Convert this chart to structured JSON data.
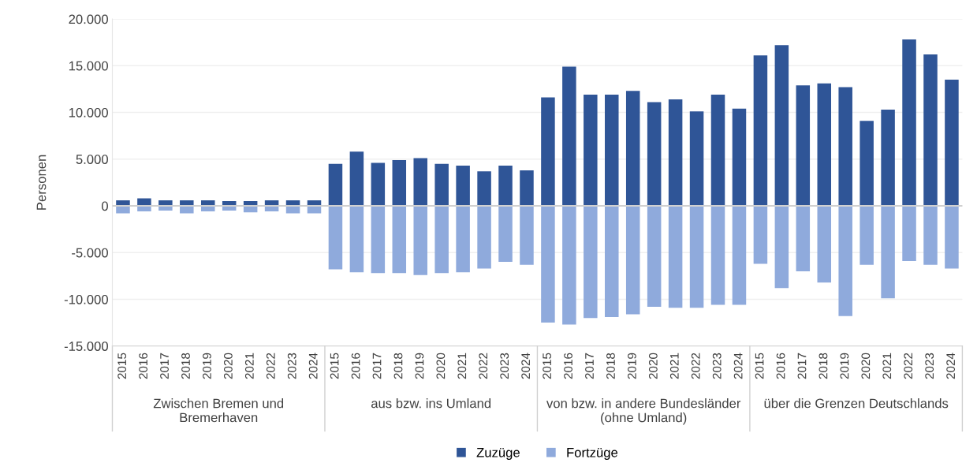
{
  "chart_data": {
    "type": "bar",
    "ylabel": "Personen",
    "categories": [
      "2015",
      "2016",
      "2017",
      "2018",
      "2019",
      "2020",
      "2021",
      "2022",
      "2023",
      "2024",
      "2015",
      "2016",
      "2017",
      "2018",
      "2019",
      "2020",
      "2021",
      "2022",
      "2023",
      "2024",
      "2015",
      "2016",
      "2017",
      "2018",
      "2019",
      "2020",
      "2021",
      "2022",
      "2023",
      "2024",
      "2015",
      "2016",
      "2017",
      "2018",
      "2019",
      "2020",
      "2021",
      "2022",
      "2023",
      "2024"
    ],
    "series": [
      {
        "name": "Zuzüge",
        "color": "#2f5597",
        "values": [
          600,
          800,
          600,
          600,
          600,
          500,
          500,
          600,
          600,
          600,
          4500,
          5800,
          4600,
          4900,
          5100,
          4500,
          4300,
          3700,
          4300,
          3800,
          11600,
          14900,
          11900,
          11900,
          12300,
          11100,
          11400,
          10100,
          11900,
          10400,
          16100,
          17200,
          12900,
          13100,
          12700,
          9100,
          10300,
          17800,
          16200,
          13500
        ]
      },
      {
        "name": "Fortzüge",
        "color": "#8faadc",
        "values": [
          -800,
          -600,
          -500,
          -800,
          -600,
          -500,
          -700,
          -600,
          -800,
          -800,
          -6800,
          -7100,
          -7200,
          -7200,
          -7400,
          -7200,
          -7100,
          -6700,
          -6000,
          -6300,
          -12500,
          -12700,
          -12000,
          -11900,
          -11600,
          -10800,
          -10900,
          -10900,
          -10600,
          -10600,
          -6200,
          -8800,
          -7000,
          -8200,
          -11800,
          -6300,
          -9900,
          -5900,
          -6300,
          -6700
        ]
      }
    ],
    "annotations": [
      "Zwischen Bremen und\nBremerhaven",
      "aus bzw. ins Umland",
      "von bzw. in andere Bundesländer\n(ohne Umland)",
      "über die Grenzen Deutschlands"
    ],
    "ylim": [
      -15000,
      20000
    ],
    "yticks": [
      {
        "value": -15000,
        "label": "-15.000"
      },
      {
        "value": -10000,
        "label": "-10.000"
      },
      {
        "value": -5000,
        "label": "-5.000"
      },
      {
        "value": 0,
        "label": "0"
      },
      {
        "value": 5000,
        "label": "5.000"
      },
      {
        "value": 10000,
        "label": "10.000"
      },
      {
        "value": 15000,
        "label": "15.000"
      },
      {
        "value": 20000,
        "label": "20.000"
      }
    ],
    "grid": "y",
    "legend": "bottom",
    "stacked": true
  }
}
